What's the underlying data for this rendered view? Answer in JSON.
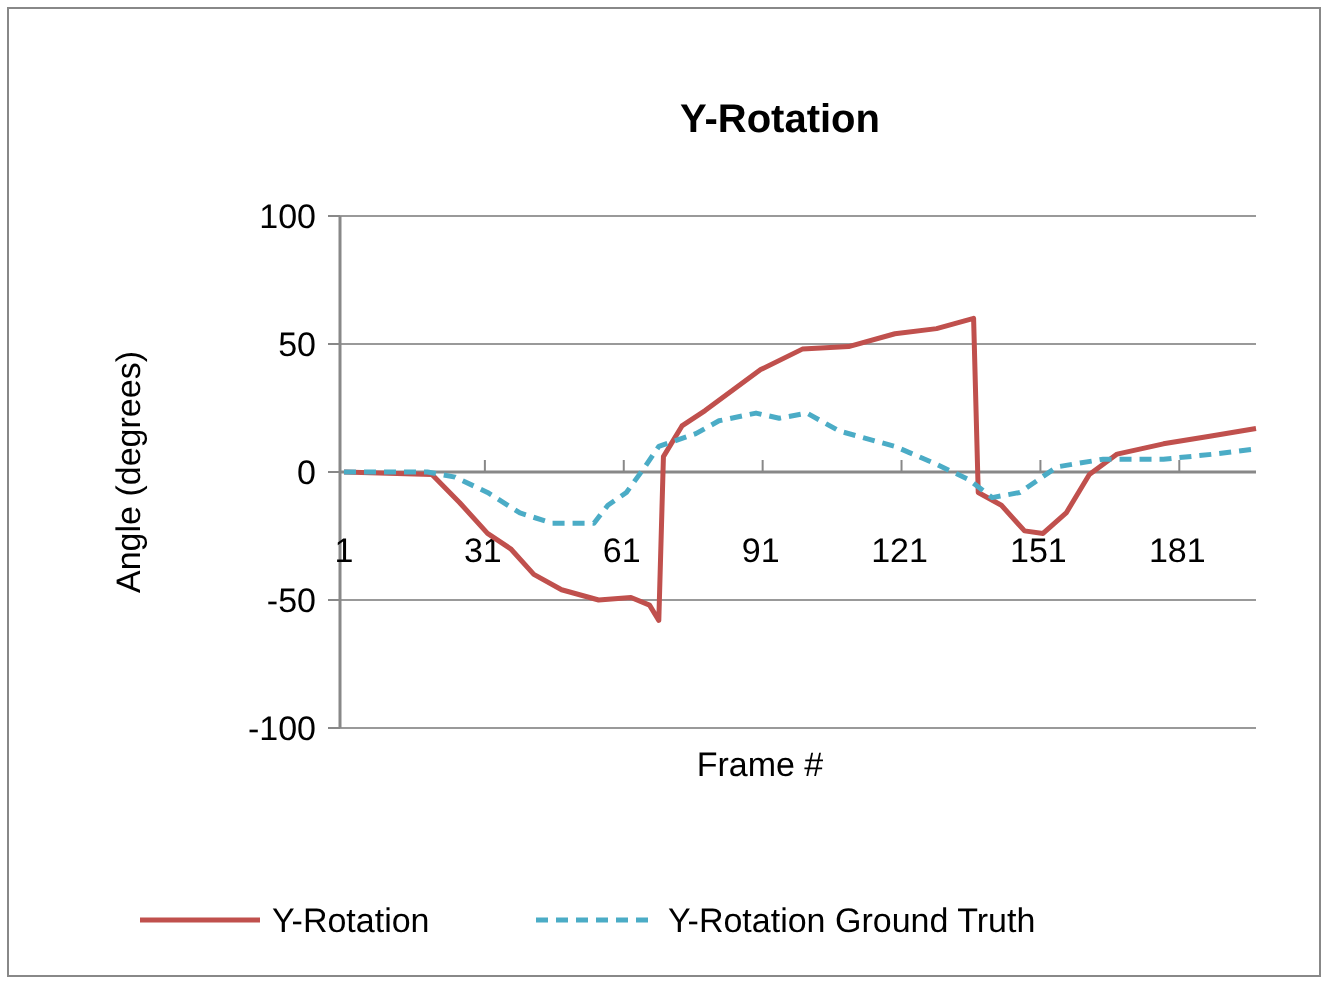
{
  "chart_data": {
    "type": "line",
    "title": "Y-Rotation",
    "xlabel": "Frame #",
    "ylabel": "Angle (degrees)",
    "xlim": [
      1,
      198
    ],
    "xticks": [
      1,
      31,
      61,
      91,
      121,
      151,
      181
    ],
    "ylim": [
      -100,
      100
    ],
    "yticks": [
      -100,
      -50,
      0,
      50,
      100
    ],
    "grid": "y",
    "legend": "bottom",
    "series": [
      {
        "name": "Y-Rotation",
        "color": "#c0504d",
        "line_style": "solid",
        "x": [
          1,
          20,
          26,
          32,
          37,
          42,
          48,
          56,
          63,
          67,
          69,
          70,
          74,
          79,
          85,
          91,
          100,
          110,
          120,
          129,
          137,
          138,
          143,
          148,
          152,
          157,
          162,
          168,
          178,
          188,
          198
        ],
        "values": [
          0,
          -1,
          -12,
          -24,
          -30,
          -40,
          -46,
          -50,
          -49,
          -52,
          -58,
          6,
          18,
          24,
          32,
          40,
          48,
          49,
          54,
          56,
          60,
          -8,
          -13,
          -23,
          -24,
          -16,
          -1,
          7,
          11,
          14,
          17
        ]
      },
      {
        "name": "Y-Rotation Ground Truth",
        "color": "#4bacc6",
        "line_style": "dashed",
        "x": [
          1,
          19,
          25,
          32,
          39,
          46,
          55,
          58,
          62,
          66,
          69,
          77,
          82,
          90,
          95,
          101,
          108,
          120,
          129,
          136,
          141,
          147,
          155,
          165,
          178,
          189,
          198
        ],
        "values": [
          0,
          0,
          -2,
          -8,
          -16,
          -20,
          -20,
          -13,
          -8,
          2,
          10,
          15,
          20,
          23,
          21,
          23,
          16,
          10,
          3,
          -3,
          -10,
          -8,
          2,
          5,
          5,
          7,
          9
        ]
      }
    ]
  }
}
